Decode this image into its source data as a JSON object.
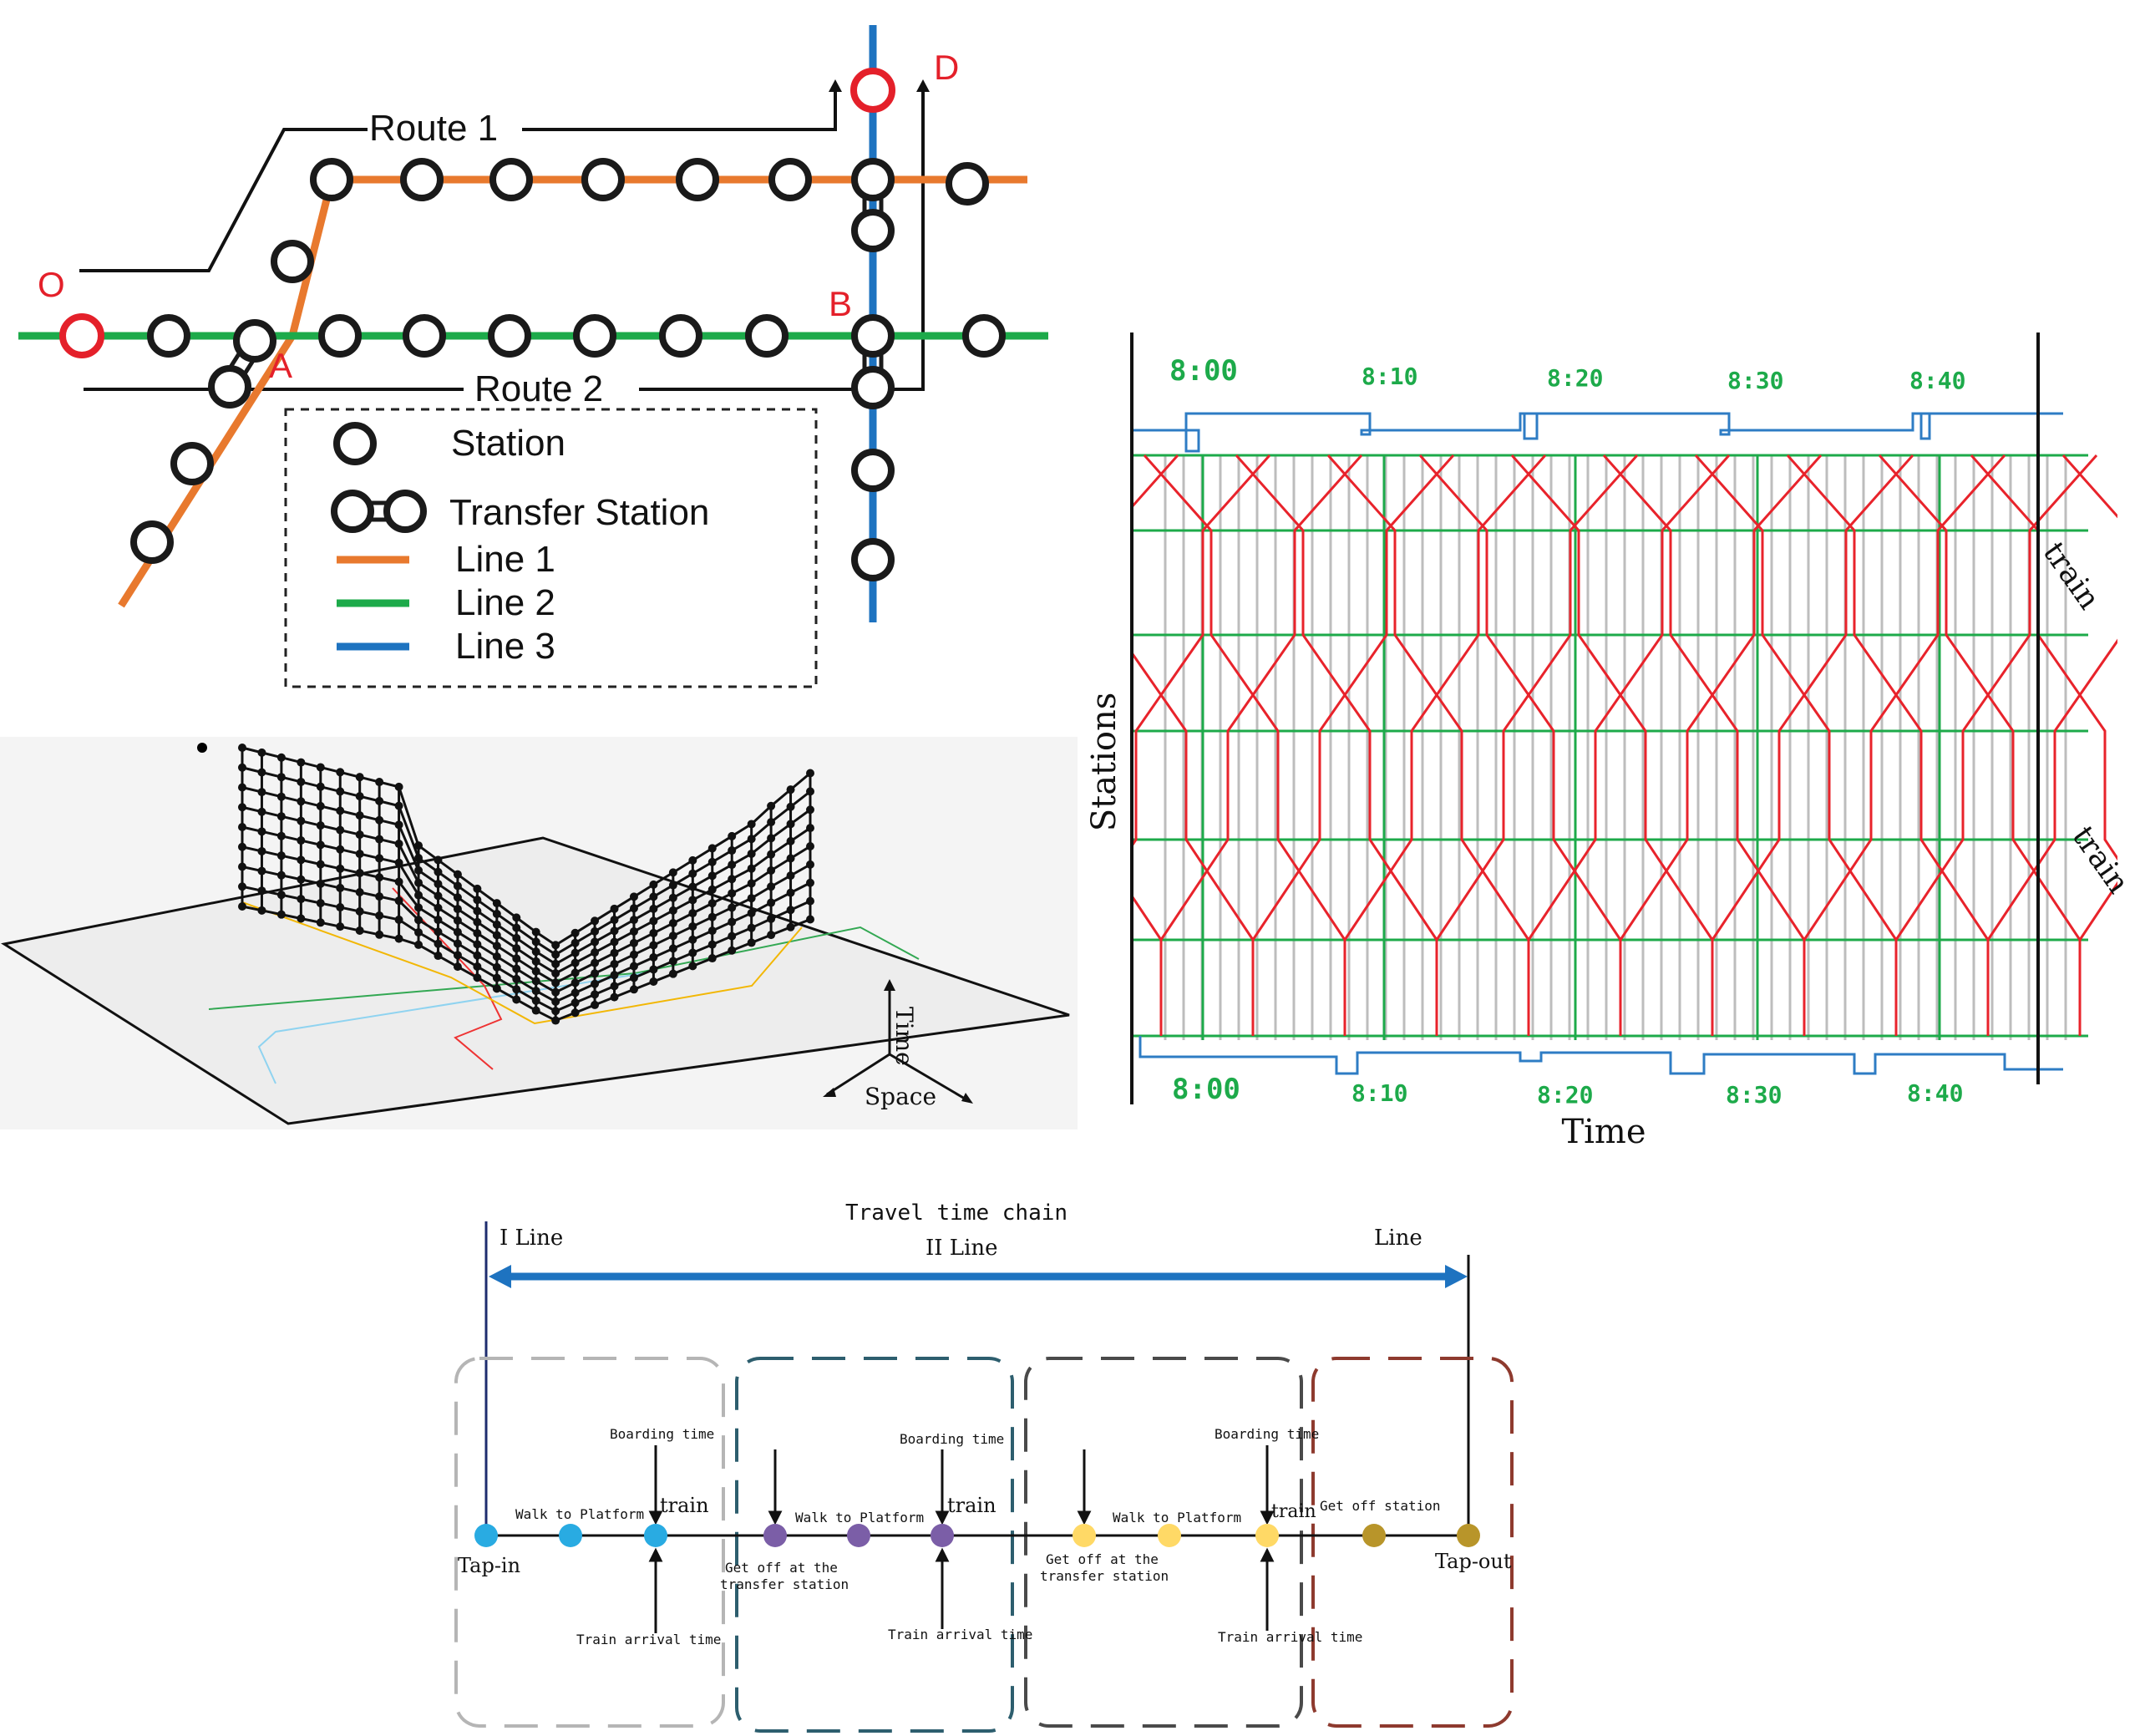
{
  "map": {
    "point_labels": {
      "origin": "O",
      "dest": "D",
      "transfer_a": "A",
      "transfer_b": "B"
    },
    "route1": "Route 1",
    "route2": "Route 2",
    "legend": [
      {
        "id": "station",
        "label": "Station"
      },
      {
        "id": "transfer",
        "label": "Transfer Station"
      },
      {
        "id": "line1",
        "label": "Line 1",
        "color": "#E8792E"
      },
      {
        "id": "line2",
        "label": "Line 2",
        "color": "#1DAA4A"
      },
      {
        "id": "line3",
        "label": "Line 3",
        "color": "#1E73C0"
      }
    ],
    "colors": {
      "od_station": "#E4202A",
      "station_stroke": "#1a1a1a"
    }
  },
  "spacetime": {
    "axis_time": "Time",
    "axis_space": "Space"
  },
  "timetable": {
    "ylabel": "Stations",
    "xlabel": "Time",
    "train_label": "train",
    "times_top": [
      "8:00",
      "8:10",
      "8:20",
      "8:30",
      "8:40"
    ],
    "times_bottom": [
      "8:00",
      "8:10",
      "8:20",
      "8:30",
      "8:40"
    ],
    "colors": {
      "trains": "#E8232B",
      "grid_major": "#1DAA4A",
      "grid_minor": "#BDBDBD",
      "brackets": "#2E7CC4",
      "time_labels": "#1DAA4A"
    }
  },
  "chain": {
    "title": "Travel time chain",
    "line_labels": {
      "first": "I Line",
      "second": "II Line",
      "third": "Line"
    },
    "labels": {
      "tap_in": "Tap-in",
      "tap_out": "Tap-out",
      "walk": "Walk to Platform",
      "train": "train",
      "boarding": "Boarding time",
      "arrival": "Train arrival time",
      "get_off_transfer_1": "Get off at the",
      "get_off_transfer_2": "transfer station",
      "get_off_station": "Get off  station"
    },
    "colors": {
      "arrow": "#1E73C0",
      "box1": "#B5B5B5",
      "box2": "#2D5E6E",
      "box3": "#4A4A4A",
      "box4": "#8E3A2E",
      "blue_dot": "#29ABE2",
      "purple_dot": "#7B5EA7",
      "yellow_dot": "#FFD966",
      "gold_dot": "#B8952A"
    }
  }
}
